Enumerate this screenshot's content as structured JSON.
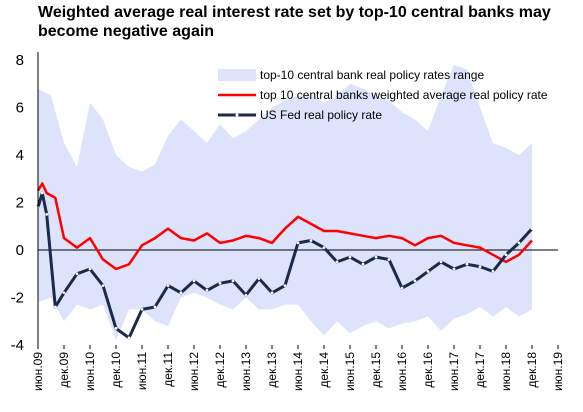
{
  "chart_data": {
    "type": "line",
    "title": "Weighted average real interest rate set by top-10 central banks may become negative again",
    "xlabel": "",
    "ylabel": "",
    "ylim": [
      -4,
      8
    ],
    "yticks": [
      "-4",
      "-2",
      "0",
      "2",
      "4",
      "6",
      "8"
    ],
    "xticks": [
      "июн.09",
      "дек.09",
      "июн.10",
      "дек.10",
      "июн.11",
      "дек.11",
      "июн.12",
      "дек.12",
      "июн.13",
      "дек.13",
      "июн.14",
      "дек.14",
      "июн.15",
      "дек.15",
      "июн.16",
      "дек.16",
      "июн.17",
      "дек.17",
      "июн.18",
      "дек.18",
      "июн.19"
    ],
    "legend_position": "top-right",
    "grid": false,
    "x_start": "2009-06",
    "series": [
      {
        "name": "top-10 central bank real policy rates range",
        "type": "area-range",
        "color": "#dde3fb",
        "x": [
          "2009-06",
          "2009-09",
          "2009-12",
          "2010-03",
          "2010-06",
          "2010-09",
          "2010-12",
          "2011-03",
          "2011-06",
          "2011-09",
          "2011-12",
          "2012-03",
          "2012-06",
          "2012-09",
          "2012-12",
          "2013-03",
          "2013-06",
          "2013-09",
          "2013-12",
          "2014-03",
          "2014-06",
          "2014-09",
          "2014-12",
          "2015-03",
          "2015-06",
          "2015-09",
          "2015-12",
          "2016-03",
          "2016-06",
          "2016-09",
          "2016-12",
          "2017-03",
          "2017-06",
          "2017-09",
          "2017-12",
          "2018-03",
          "2018-06",
          "2018-09",
          "2018-12"
        ],
        "high": [
          6.8,
          6.5,
          4.5,
          3.5,
          6.2,
          5.5,
          4.0,
          3.5,
          3.3,
          3.6,
          4.8,
          5.5,
          5.0,
          4.5,
          5.3,
          4.7,
          5.0,
          5.5,
          6.0,
          6.3,
          6.5,
          6.5,
          6.2,
          6.5,
          7.0,
          6.8,
          6.5,
          6.3,
          5.8,
          5.5,
          5.0,
          6.5,
          7.8,
          7.6,
          6.0,
          4.5,
          4.3,
          4.0,
          4.5
        ],
        "low": [
          -2.2,
          -2.0,
          -3.0,
          -2.3,
          -2.5,
          -2.3,
          -3.8,
          -2.5,
          -2.5,
          -3.0,
          -3.2,
          -2.0,
          -1.8,
          -2.0,
          -2.3,
          -2.5,
          -2.0,
          -2.5,
          -2.5,
          -2.3,
          -2.3,
          -3.0,
          -3.6,
          -3.0,
          -3.5,
          -3.2,
          -3.0,
          -3.3,
          -3.1,
          -3.0,
          -2.8,
          -3.4,
          -2.9,
          -2.7,
          -2.4,
          -2.8,
          -2.4,
          -2.8,
          -2.5
        ]
      },
      {
        "name": "top 10 central banks weighted average real policy rate",
        "type": "line",
        "color": "#ff0000",
        "x": [
          "2009-06",
          "2009-07",
          "2009-08",
          "2009-10",
          "2009-12",
          "2010-03",
          "2010-06",
          "2010-09",
          "2010-12",
          "2011-03",
          "2011-06",
          "2011-09",
          "2011-12",
          "2012-03",
          "2012-06",
          "2012-09",
          "2012-12",
          "2013-03",
          "2013-06",
          "2013-09",
          "2013-12",
          "2014-03",
          "2014-06",
          "2014-09",
          "2014-12",
          "2015-03",
          "2015-06",
          "2015-09",
          "2015-12",
          "2016-03",
          "2016-06",
          "2016-09",
          "2016-12",
          "2017-03",
          "2017-06",
          "2017-09",
          "2017-12",
          "2018-03",
          "2018-06",
          "2018-09",
          "2018-12"
        ],
        "values": [
          2.5,
          2.8,
          2.4,
          2.2,
          0.5,
          0.1,
          0.5,
          -0.4,
          -0.8,
          -0.6,
          0.2,
          0.5,
          0.9,
          0.5,
          0.4,
          0.7,
          0.3,
          0.4,
          0.6,
          0.5,
          0.3,
          0.9,
          1.4,
          1.1,
          0.8,
          0.8,
          0.7,
          0.6,
          0.5,
          0.6,
          0.5,
          0.2,
          0.5,
          0.6,
          0.3,
          0.2,
          0.1,
          -0.2,
          -0.5,
          -0.2,
          0.4
        ]
      },
      {
        "name": "US Fed real policy rate",
        "type": "line",
        "color": "#1b2a4a",
        "x": [
          "2009-06",
          "2009-07",
          "2009-08",
          "2009-10",
          "2009-12",
          "2010-03",
          "2010-06",
          "2010-09",
          "2010-12",
          "2011-03",
          "2011-06",
          "2011-09",
          "2011-12",
          "2012-03",
          "2012-06",
          "2012-09",
          "2012-12",
          "2013-03",
          "2013-06",
          "2013-09",
          "2013-12",
          "2014-03",
          "2014-06",
          "2014-09",
          "2014-12",
          "2015-03",
          "2015-06",
          "2015-09",
          "2015-12",
          "2016-03",
          "2016-06",
          "2016-09",
          "2016-12",
          "2017-03",
          "2017-06",
          "2017-09",
          "2017-12",
          "2018-03",
          "2018-06",
          "2018-09",
          "2018-12"
        ],
        "values": [
          1.8,
          2.4,
          1.5,
          -2.4,
          -1.8,
          -1.0,
          -0.8,
          -1.5,
          -3.3,
          -3.7,
          -2.5,
          -2.4,
          -1.5,
          -1.8,
          -1.3,
          -1.7,
          -1.4,
          -1.3,
          -1.9,
          -1.2,
          -1.8,
          -1.5,
          0.3,
          0.4,
          0.1,
          -0.5,
          -0.3,
          -0.6,
          -0.3,
          -0.4,
          -1.6,
          -1.3,
          -0.9,
          -0.5,
          -0.8,
          -0.6,
          -0.7,
          -0.9,
          -0.2,
          0.3,
          0.9
        ]
      }
    ]
  }
}
